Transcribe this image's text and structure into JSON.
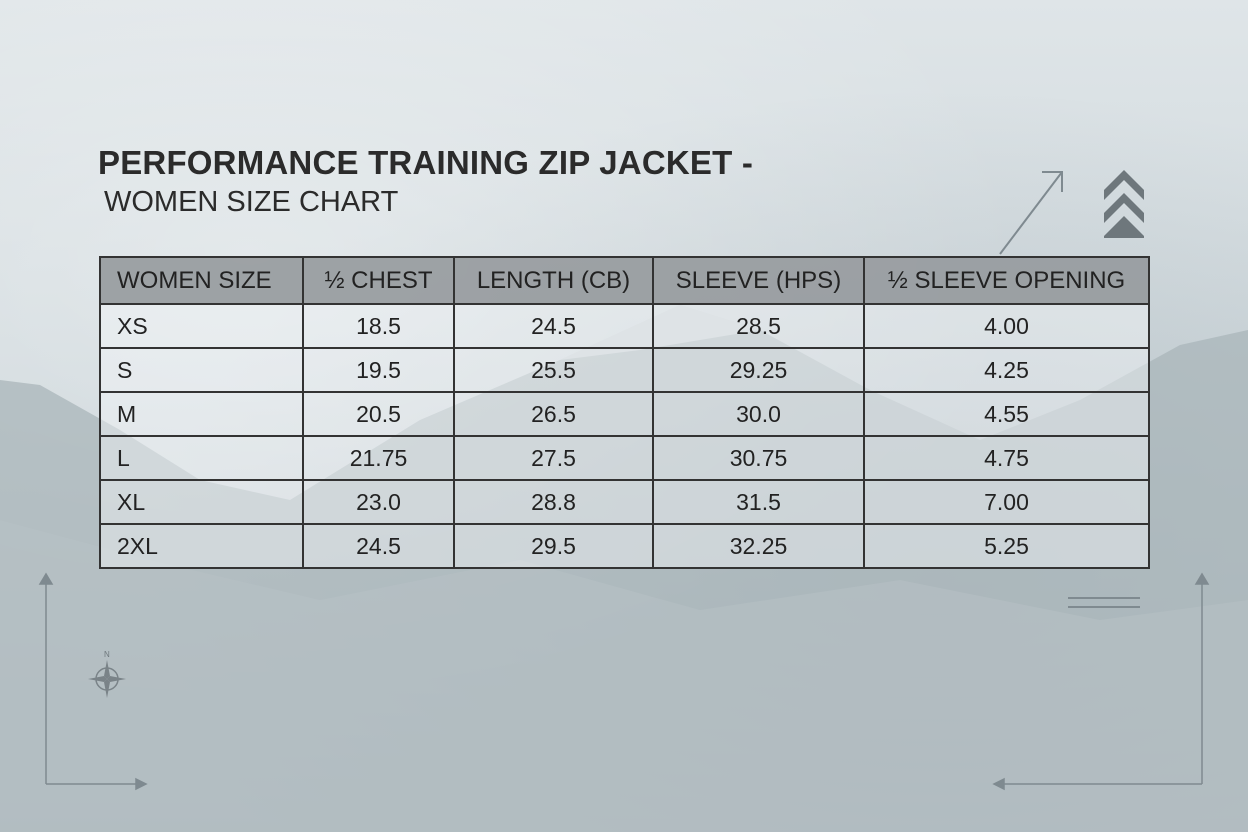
{
  "title": "PERFORMANCE TRAINING ZIP JACKET -",
  "subtitle": "WOMEN SIZE CHART",
  "table": {
    "headers": [
      "WOMEN SIZE",
      "½ CHEST",
      "LENGTH (CB)",
      "SLEEVE (HPS)",
      "½ SLEEVE OPENING"
    ],
    "rows": [
      [
        "XS",
        "18.5",
        "24.5",
        "28.5",
        "4.00"
      ],
      [
        "S",
        "19.5",
        "25.5",
        "29.25",
        "4.25"
      ],
      [
        "M",
        "20.5",
        "26.5",
        "30.0",
        "4.55"
      ],
      [
        "L",
        "21.75",
        "27.5",
        "30.75",
        "4.75"
      ],
      [
        "XL",
        "23.0",
        "28.8",
        "31.5",
        "7.00"
      ],
      [
        "2XL",
        "24.5",
        "29.5",
        "32.25",
        "5.25"
      ]
    ]
  },
  "compass_label": "N",
  "colors": {
    "text": "#222222",
    "header_bg": "#969a9d",
    "border": "#333333",
    "background": "#cfd8dc",
    "mountain": "#a9b5ba"
  },
  "icons": [
    "chevron-up-stack-icon",
    "arrow-diagonal-icon",
    "compass-icon",
    "corner-arrow-icon"
  ]
}
